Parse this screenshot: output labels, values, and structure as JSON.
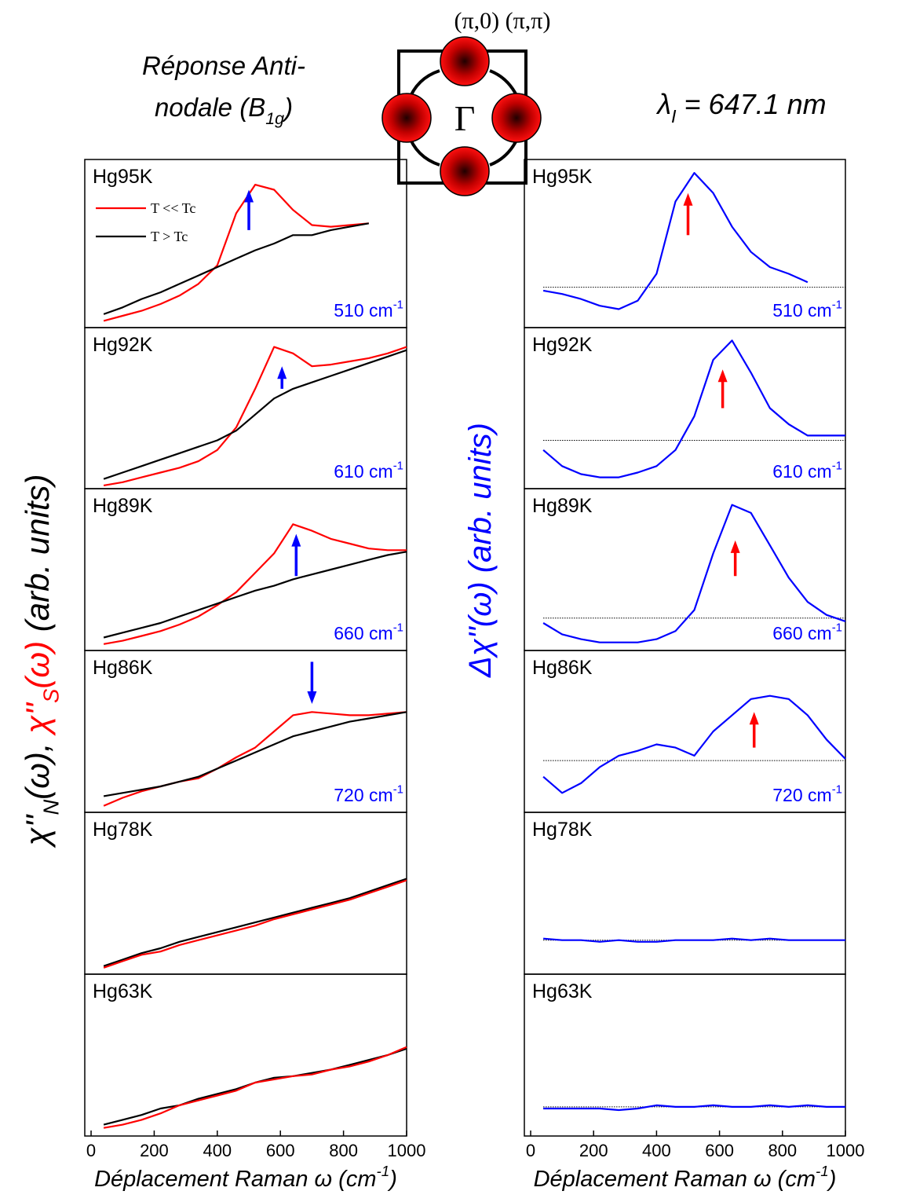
{
  "figure": {
    "top_label": "(π,0) (π,π)",
    "gamma": "Γ",
    "subtitle_line1": "Réponse Anti-",
    "subtitle_line2": [
      {
        "text": "nodale (B"
      },
      {
        "text": "1g",
        "sub": true
      },
      {
        "text": ")"
      }
    ],
    "wavelength": [
      {
        "text": "λ"
      },
      {
        "text": "I",
        "sub": true
      },
      {
        "text": " = 647.1 nm"
      }
    ],
    "left_ylabel": [
      {
        "text": "χ''"
      },
      {
        "text": "N",
        "sub": true
      },
      {
        "text": "(ω), "
      },
      {
        "text": "χ''",
        "color": "#ff0000"
      },
      {
        "text": "S",
        "sub": true,
        "color": "#ff0000"
      },
      {
        "text": "(ω)",
        "color": "#ff0000"
      },
      {
        "text": " (arb. units)"
      }
    ],
    "right_ylabel": "Δχ''(ω) (arb. units)",
    "right_ylabel_color": "#0000ff"
  },
  "chart_data": [
    {
      "type": "line",
      "title": "Hg95K",
      "annotation": [
        {
          "text": "510 cm"
        },
        {
          "text": "-1",
          "sup": true
        }
      ],
      "annotation_color": "#0000ff",
      "xlim": [
        -20,
        1000
      ],
      "ylim": [
        0,
        1
      ],
      "legend": "upper left",
      "x": [
        40,
        100,
        160,
        220,
        280,
        340,
        400,
        460,
        520,
        580,
        640,
        700,
        760,
        820,
        880
      ],
      "series": [
        {
          "name": "T << Tc",
          "color": "#ff0000",
          "values": [
            0.04,
            0.07,
            0.1,
            0.14,
            0.19,
            0.26,
            0.37,
            0.68,
            0.85,
            0.82,
            0.7,
            0.61,
            0.6,
            0.61,
            0.62
          ]
        },
        {
          "name": "T > Tc",
          "color": "#000000",
          "values": [
            0.08,
            0.12,
            0.17,
            0.21,
            0.26,
            0.31,
            0.36,
            0.41,
            0.46,
            0.5,
            0.55,
            0.55,
            0.58,
            0.6,
            0.62
          ]
        }
      ],
      "arrow": {
        "x": 500,
        "from": 0.58,
        "to": 0.82,
        "color": "#0000ff"
      }
    },
    {
      "type": "line",
      "title": "Hg92K",
      "annotation": [
        {
          "text": "610 cm"
        },
        {
          "text": "-1",
          "sup": true
        }
      ],
      "annotation_color": "#0000ff",
      "xlim": [
        -20,
        1000
      ],
      "ylim": [
        0,
        1
      ],
      "x": [
        40,
        100,
        160,
        220,
        280,
        340,
        400,
        460,
        520,
        580,
        640,
        700,
        760,
        820,
        880,
        940,
        1000
      ],
      "series": [
        {
          "color": "#ff0000",
          "values": [
            0.02,
            0.04,
            0.07,
            0.1,
            0.13,
            0.17,
            0.24,
            0.38,
            0.62,
            0.88,
            0.84,
            0.76,
            0.77,
            0.79,
            0.81,
            0.84,
            0.88
          ]
        },
        {
          "color": "#000000",
          "values": [
            0.06,
            0.1,
            0.14,
            0.18,
            0.22,
            0.26,
            0.3,
            0.36,
            0.46,
            0.56,
            0.62,
            0.66,
            0.7,
            0.74,
            0.78,
            0.82,
            0.86
          ]
        }
      ],
      "arrow": {
        "x": 605,
        "from": 0.62,
        "to": 0.76,
        "color": "#0000ff"
      }
    },
    {
      "type": "line",
      "title": "Hg89K",
      "annotation": [
        {
          "text": "660 cm"
        },
        {
          "text": "-1",
          "sup": true
        }
      ],
      "annotation_color": "#0000ff",
      "xlim": [
        -20,
        1000
      ],
      "ylim": [
        0,
        1
      ],
      "x": [
        40,
        100,
        160,
        220,
        280,
        340,
        400,
        460,
        520,
        580,
        640,
        700,
        760,
        820,
        880,
        940,
        1000
      ],
      "series": [
        {
          "color": "#ff0000",
          "values": [
            0.04,
            0.06,
            0.09,
            0.12,
            0.16,
            0.21,
            0.28,
            0.36,
            0.48,
            0.6,
            0.78,
            0.74,
            0.69,
            0.66,
            0.63,
            0.62,
            0.62
          ]
        },
        {
          "color": "#000000",
          "values": [
            0.08,
            0.11,
            0.14,
            0.17,
            0.21,
            0.25,
            0.29,
            0.33,
            0.37,
            0.4,
            0.44,
            0.47,
            0.5,
            0.53,
            0.56,
            0.59,
            0.61
          ]
        }
      ],
      "arrow": {
        "x": 650,
        "from": 0.46,
        "to": 0.72,
        "color": "#0000ff"
      }
    },
    {
      "type": "line",
      "title": "Hg86K",
      "annotation": [
        {
          "text": "720 cm"
        },
        {
          "text": "-1",
          "sup": true
        }
      ],
      "annotation_color": "#0000ff",
      "xlim": [
        -20,
        1000
      ],
      "ylim": [
        0,
        1
      ],
      "x": [
        40,
        100,
        160,
        220,
        280,
        340,
        400,
        460,
        520,
        580,
        640,
        700,
        760,
        820,
        880,
        940,
        1000
      ],
      "series": [
        {
          "color": "#ff0000",
          "values": [
            0.04,
            0.09,
            0.13,
            0.16,
            0.19,
            0.21,
            0.27,
            0.34,
            0.4,
            0.5,
            0.6,
            0.62,
            0.61,
            0.6,
            0.6,
            0.61,
            0.62
          ]
        },
        {
          "color": "#000000",
          "values": [
            0.1,
            0.12,
            0.14,
            0.16,
            0.19,
            0.22,
            0.27,
            0.32,
            0.37,
            0.42,
            0.47,
            0.5,
            0.53,
            0.56,
            0.58,
            0.6,
            0.62
          ]
        }
      ],
      "arrow": {
        "x": 700,
        "from": 0.93,
        "to": 0.67,
        "color": "#0000ff"
      }
    },
    {
      "type": "line",
      "title": "Hg78K",
      "xlim": [
        -20,
        1000
      ],
      "ylim": [
        0,
        1
      ],
      "x": [
        40,
        100,
        160,
        220,
        280,
        340,
        400,
        460,
        520,
        580,
        640,
        700,
        760,
        820,
        880,
        940,
        1000
      ],
      "series": [
        {
          "color": "#000000",
          "values": [
            0.05,
            0.09,
            0.13,
            0.16,
            0.2,
            0.23,
            0.26,
            0.29,
            0.32,
            0.35,
            0.38,
            0.41,
            0.44,
            0.47,
            0.51,
            0.55,
            0.59
          ]
        },
        {
          "color": "#ff0000",
          "values": [
            0.04,
            0.08,
            0.12,
            0.14,
            0.18,
            0.21,
            0.24,
            0.27,
            0.3,
            0.34,
            0.37,
            0.4,
            0.43,
            0.46,
            0.5,
            0.54,
            0.58
          ]
        }
      ]
    },
    {
      "type": "line",
      "title": "Hg63K",
      "xlim": [
        -20,
        1000
      ],
      "ylim": [
        0,
        1
      ],
      "xticks": [
        0,
        200,
        400,
        600,
        800,
        1000
      ],
      "xlabel": [
        {
          "text": "Déplacement Raman ω (cm"
        },
        {
          "text": "-1",
          "sup": true
        },
        {
          "text": ")"
        }
      ],
      "x": [
        40,
        100,
        160,
        220,
        280,
        340,
        400,
        460,
        520,
        580,
        640,
        700,
        760,
        820,
        880,
        940,
        1000
      ],
      "series": [
        {
          "color": "#000000",
          "values": [
            0.07,
            0.1,
            0.13,
            0.17,
            0.19,
            0.23,
            0.26,
            0.29,
            0.33,
            0.36,
            0.37,
            0.39,
            0.41,
            0.44,
            0.47,
            0.5,
            0.54
          ]
        },
        {
          "color": "#ff0000",
          "values": [
            0.05,
            0.07,
            0.1,
            0.14,
            0.19,
            0.22,
            0.25,
            0.28,
            0.33,
            0.35,
            0.37,
            0.38,
            0.41,
            0.43,
            0.46,
            0.5,
            0.55
          ]
        }
      ]
    },
    {
      "type": "line",
      "title": "Hg95K",
      "annotation": [
        {
          "text": "510 cm"
        },
        {
          "text": "-1",
          "sup": true
        }
      ],
      "annotation_color": "#0000ff",
      "xlim": [
        -20,
        1000
      ],
      "ylim": [
        0,
        1
      ],
      "hline": 0.24,
      "x": [
        40,
        100,
        160,
        220,
        280,
        340,
        400,
        460,
        520,
        580,
        640,
        700,
        760,
        820,
        880
      ],
      "series": [
        {
          "color": "#0000ff",
          "values": [
            0.22,
            0.2,
            0.17,
            0.13,
            0.11,
            0.16,
            0.32,
            0.75,
            0.92,
            0.8,
            0.6,
            0.45,
            0.36,
            0.32,
            0.27
          ]
        }
      ],
      "arrow": {
        "x": 500,
        "from": 0.55,
        "to": 0.8,
        "color": "#ff0000"
      }
    },
    {
      "type": "line",
      "title": "Hg92K",
      "annotation": [
        {
          "text": "610 cm"
        },
        {
          "text": "-1",
          "sup": true
        }
      ],
      "annotation_color": "#0000ff",
      "xlim": [
        -20,
        1000
      ],
      "ylim": [
        0,
        1
      ],
      "hline": 0.3,
      "x": [
        40,
        100,
        160,
        220,
        280,
        340,
        400,
        460,
        520,
        580,
        640,
        700,
        760,
        820,
        880,
        940,
        1000
      ],
      "series": [
        {
          "color": "#0000ff",
          "values": [
            0.24,
            0.14,
            0.09,
            0.07,
            0.07,
            0.1,
            0.14,
            0.24,
            0.45,
            0.8,
            0.92,
            0.72,
            0.5,
            0.4,
            0.33,
            0.33,
            0.33
          ]
        }
      ],
      "arrow": {
        "x": 610,
        "from": 0.5,
        "to": 0.74,
        "color": "#ff0000"
      }
    },
    {
      "type": "line",
      "title": "Hg89K",
      "annotation": [
        {
          "text": "660 cm"
        },
        {
          "text": "-1",
          "sup": true
        }
      ],
      "annotation_color": "#0000ff",
      "xlim": [
        -20,
        1000
      ],
      "ylim": [
        0,
        1
      ],
      "hline": 0.2,
      "x": [
        40,
        100,
        160,
        220,
        280,
        340,
        400,
        460,
        520,
        580,
        640,
        700,
        760,
        820,
        880,
        940,
        1000
      ],
      "series": [
        {
          "color": "#0000ff",
          "values": [
            0.17,
            0.1,
            0.07,
            0.05,
            0.05,
            0.05,
            0.07,
            0.12,
            0.25,
            0.6,
            0.9,
            0.85,
            0.65,
            0.45,
            0.3,
            0.22,
            0.18
          ]
        }
      ],
      "arrow": {
        "x": 650,
        "from": 0.46,
        "to": 0.68,
        "color": "#ff0000"
      }
    },
    {
      "type": "line",
      "title": "Hg86K",
      "annotation": [
        {
          "text": "720 cm"
        },
        {
          "text": "-1",
          "sup": true
        }
      ],
      "annotation_color": "#0000ff",
      "xlim": [
        -20,
        1000
      ],
      "ylim": [
        0,
        1
      ],
      "hline": 0.32,
      "x": [
        40,
        100,
        160,
        220,
        280,
        340,
        400,
        460,
        520,
        580,
        640,
        700,
        760,
        820,
        880,
        940,
        1000
      ],
      "series": [
        {
          "color": "#0000ff",
          "values": [
            0.22,
            0.12,
            0.18,
            0.28,
            0.35,
            0.38,
            0.42,
            0.4,
            0.35,
            0.5,
            0.6,
            0.7,
            0.72,
            0.7,
            0.6,
            0.45,
            0.33
          ]
        }
      ],
      "arrow": {
        "x": 710,
        "from": 0.4,
        "to": 0.62,
        "color": "#ff0000"
      }
    },
    {
      "type": "line",
      "title": "Hg78K",
      "xlim": [
        -20,
        1000
      ],
      "ylim": [
        0,
        1
      ],
      "hline": 0.21,
      "x": [
        40,
        100,
        160,
        220,
        280,
        340,
        400,
        460,
        520,
        580,
        640,
        700,
        760,
        820,
        880,
        940,
        1000
      ],
      "series": [
        {
          "color": "#0000ff",
          "values": [
            0.22,
            0.21,
            0.21,
            0.2,
            0.21,
            0.2,
            0.2,
            0.21,
            0.21,
            0.21,
            0.22,
            0.21,
            0.22,
            0.21,
            0.21,
            0.21,
            0.21
          ]
        }
      ]
    },
    {
      "type": "line",
      "title": "Hg63K",
      "xlim": [
        -20,
        1000
      ],
      "ylim": [
        0,
        1
      ],
      "hline": 0.18,
      "xticks": [
        0,
        200,
        400,
        600,
        800,
        1000
      ],
      "xlabel": [
        {
          "text": "Déplacement Raman ω (cm"
        },
        {
          "text": "-1",
          "sup": true
        },
        {
          "text": ")"
        }
      ],
      "x": [
        40,
        100,
        160,
        220,
        280,
        340,
        400,
        460,
        520,
        580,
        640,
        700,
        760,
        820,
        880,
        940,
        1000
      ],
      "series": [
        {
          "color": "#0000ff",
          "values": [
            0.17,
            0.17,
            0.17,
            0.17,
            0.16,
            0.17,
            0.19,
            0.18,
            0.18,
            0.19,
            0.18,
            0.18,
            0.19,
            0.18,
            0.19,
            0.18,
            0.18
          ]
        }
      ]
    }
  ]
}
